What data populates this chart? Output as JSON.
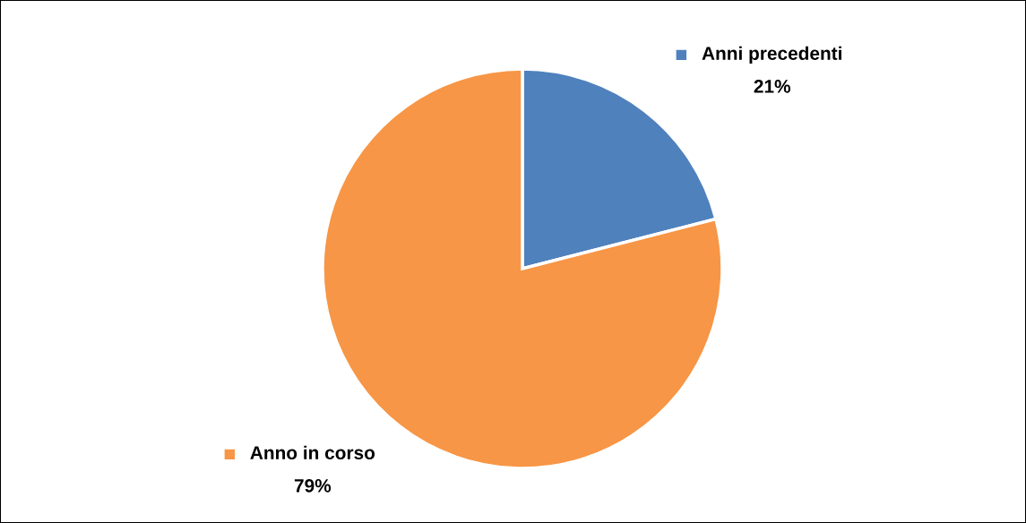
{
  "chart_data": {
    "type": "pie",
    "categories": [
      "Anni precedenti",
      "Anno in corso"
    ],
    "values": [
      21,
      79
    ],
    "colors": [
      "#4f81bd",
      "#f79646"
    ],
    "value_labels": [
      "21%",
      "79%"
    ],
    "legend": "top right"
  }
}
